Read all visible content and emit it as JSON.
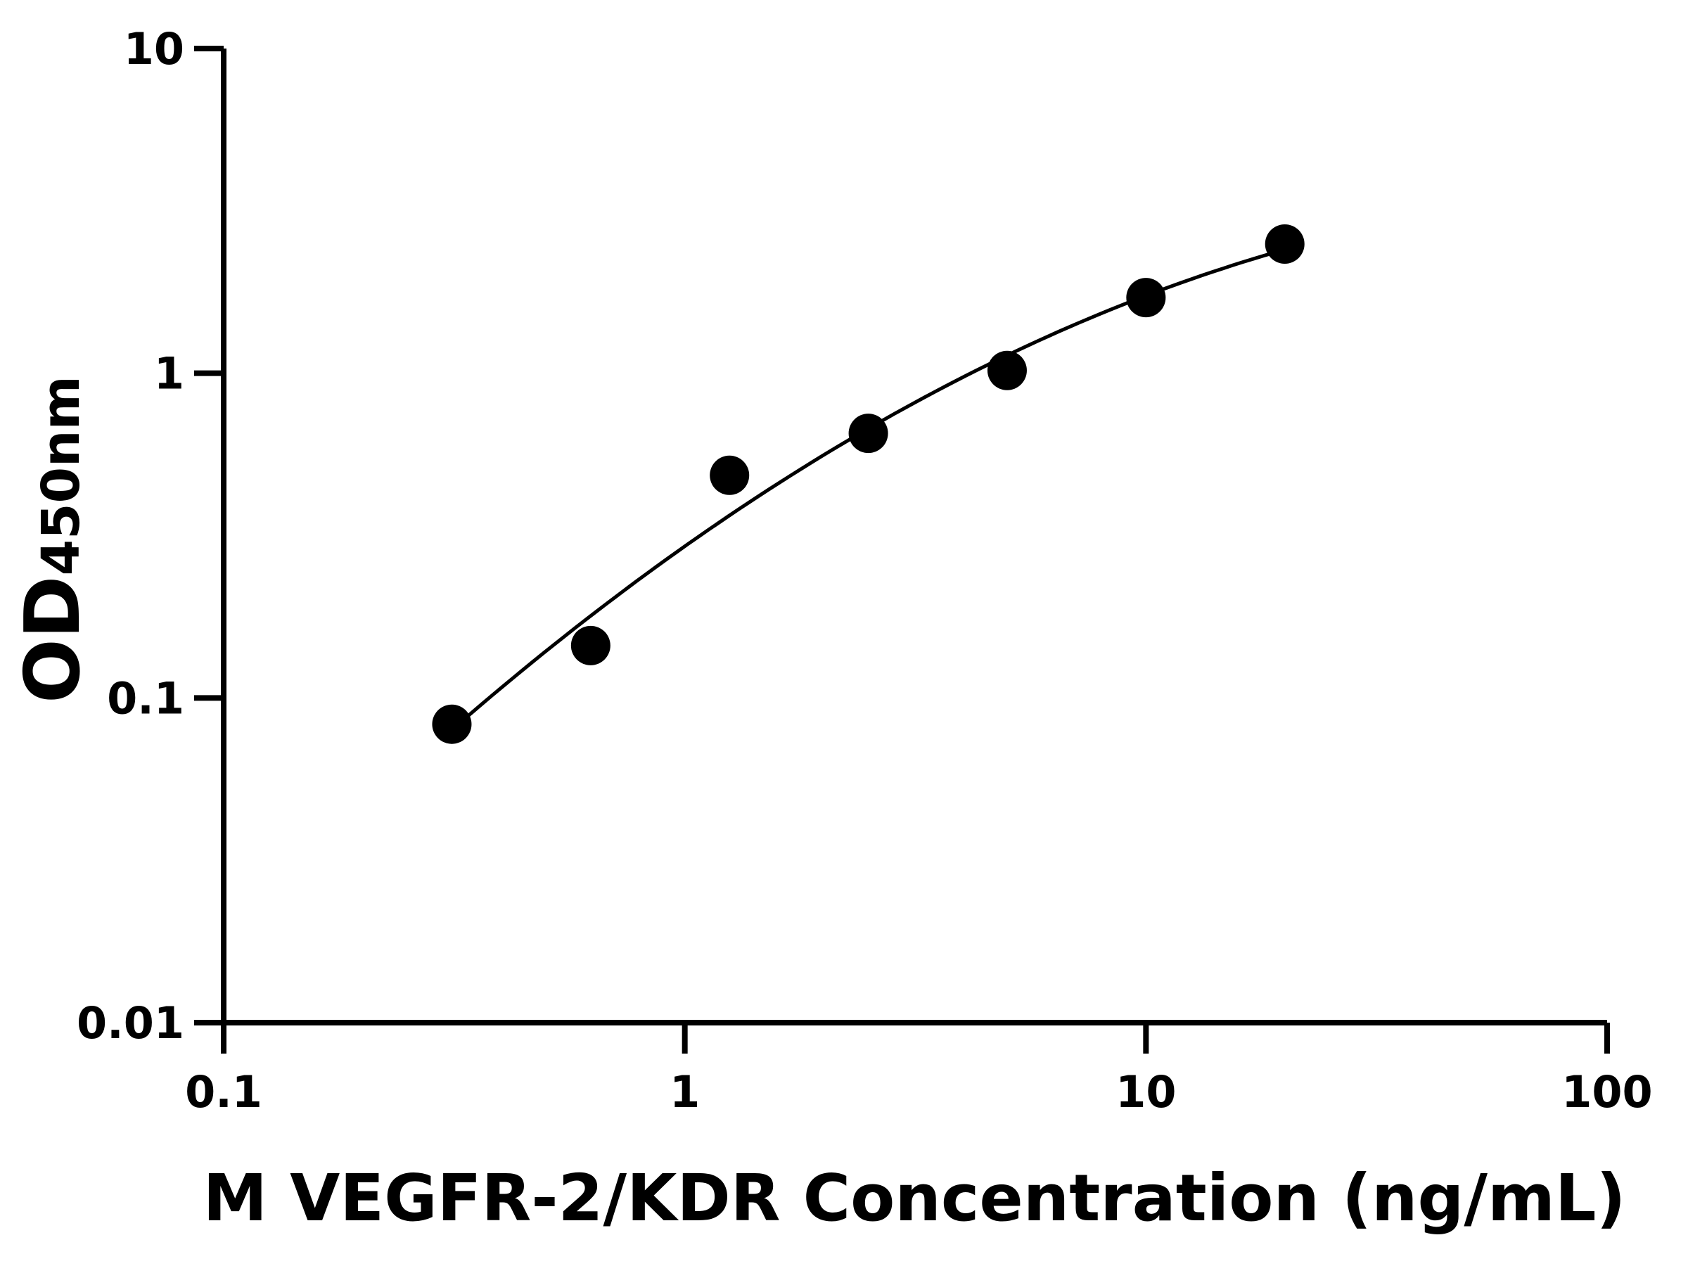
{
  "chart_data": {
    "type": "scatter",
    "title": "",
    "xlabel": "M VEGFR-2/KDR Concentration (ng/mL)",
    "ylabel_main": "OD",
    "ylabel_sub": "450nm",
    "x_scale": "log",
    "y_scale": "log",
    "xlim": [
      0.1,
      100
    ],
    "ylim": [
      0.01,
      10
    ],
    "x_ticks": [
      "0.1",
      "1",
      "10",
      "100"
    ],
    "y_ticks": [
      "0.01",
      "0.1",
      "1",
      "10"
    ],
    "grid": false,
    "legend": "none",
    "series": [
      {
        "x": [
          0.3125,
          0.625,
          1.25,
          2.5,
          5,
          10,
          20
        ],
        "y": [
          0.083,
          0.145,
          0.485,
          0.653,
          1.02,
          1.71,
          2.5
        ],
        "fit_line": true
      }
    ],
    "colors": {
      "marks": "#000000",
      "background": "#ffffff"
    }
  }
}
